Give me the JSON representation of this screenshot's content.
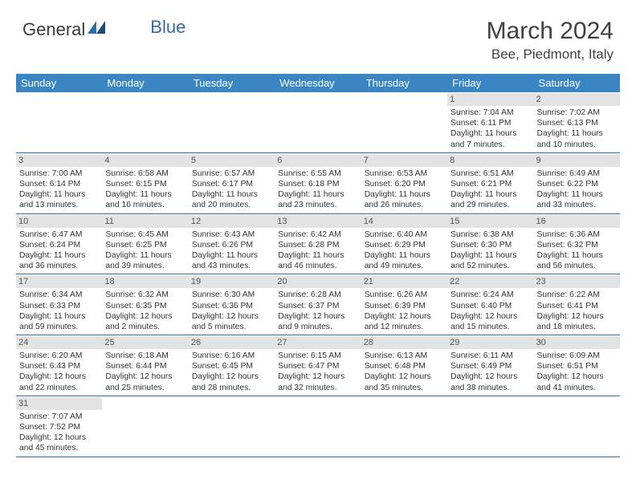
{
  "logo": {
    "word1": "General",
    "word2": "Blue"
  },
  "header": {
    "month": "March 2024",
    "location": "Bee, Piedmont, Italy"
  },
  "colors": {
    "header_bg": "#3a86c5",
    "header_text": "#ffffff",
    "date_bg": "#e3e3e3",
    "row_border": "#2f6ca8",
    "body_text": "#333333",
    "logo_gray": "#3a3a3a",
    "logo_blue": "#2f6ca8"
  },
  "daynames": [
    "Sunday",
    "Monday",
    "Tuesday",
    "Wednesday",
    "Thursday",
    "Friday",
    "Saturday"
  ],
  "weeks": [
    [
      {
        "empty": true
      },
      {
        "empty": true
      },
      {
        "empty": true
      },
      {
        "empty": true
      },
      {
        "empty": true
      },
      {
        "date": "1",
        "sunrise": "Sunrise: 7:04 AM",
        "sunset": "Sunset: 6:11 PM",
        "daylight1": "Daylight: 11 hours",
        "daylight2": "and 7 minutes."
      },
      {
        "date": "2",
        "sunrise": "Sunrise: 7:02 AM",
        "sunset": "Sunset: 6:13 PM",
        "daylight1": "Daylight: 11 hours",
        "daylight2": "and 10 minutes."
      }
    ],
    [
      {
        "date": "3",
        "sunrise": "Sunrise: 7:00 AM",
        "sunset": "Sunset: 6:14 PM",
        "daylight1": "Daylight: 11 hours",
        "daylight2": "and 13 minutes."
      },
      {
        "date": "4",
        "sunrise": "Sunrise: 6:58 AM",
        "sunset": "Sunset: 6:15 PM",
        "daylight1": "Daylight: 11 hours",
        "daylight2": "and 16 minutes."
      },
      {
        "date": "5",
        "sunrise": "Sunrise: 6:57 AM",
        "sunset": "Sunset: 6:17 PM",
        "daylight1": "Daylight: 11 hours",
        "daylight2": "and 20 minutes."
      },
      {
        "date": "6",
        "sunrise": "Sunrise: 6:55 AM",
        "sunset": "Sunset: 6:18 PM",
        "daylight1": "Daylight: 11 hours",
        "daylight2": "and 23 minutes."
      },
      {
        "date": "7",
        "sunrise": "Sunrise: 6:53 AM",
        "sunset": "Sunset: 6:20 PM",
        "daylight1": "Daylight: 11 hours",
        "daylight2": "and 26 minutes."
      },
      {
        "date": "8",
        "sunrise": "Sunrise: 6:51 AM",
        "sunset": "Sunset: 6:21 PM",
        "daylight1": "Daylight: 11 hours",
        "daylight2": "and 29 minutes."
      },
      {
        "date": "9",
        "sunrise": "Sunrise: 6:49 AM",
        "sunset": "Sunset: 6:22 PM",
        "daylight1": "Daylight: 11 hours",
        "daylight2": "and 33 minutes."
      }
    ],
    [
      {
        "date": "10",
        "sunrise": "Sunrise: 6:47 AM",
        "sunset": "Sunset: 6:24 PM",
        "daylight1": "Daylight: 11 hours",
        "daylight2": "and 36 minutes."
      },
      {
        "date": "11",
        "sunrise": "Sunrise: 6:45 AM",
        "sunset": "Sunset: 6:25 PM",
        "daylight1": "Daylight: 11 hours",
        "daylight2": "and 39 minutes."
      },
      {
        "date": "12",
        "sunrise": "Sunrise: 6:43 AM",
        "sunset": "Sunset: 6:26 PM",
        "daylight1": "Daylight: 11 hours",
        "daylight2": "and 43 minutes."
      },
      {
        "date": "13",
        "sunrise": "Sunrise: 6:42 AM",
        "sunset": "Sunset: 6:28 PM",
        "daylight1": "Daylight: 11 hours",
        "daylight2": "and 46 minutes."
      },
      {
        "date": "14",
        "sunrise": "Sunrise: 6:40 AM",
        "sunset": "Sunset: 6:29 PM",
        "daylight1": "Daylight: 11 hours",
        "daylight2": "and 49 minutes."
      },
      {
        "date": "15",
        "sunrise": "Sunrise: 6:38 AM",
        "sunset": "Sunset: 6:30 PM",
        "daylight1": "Daylight: 11 hours",
        "daylight2": "and 52 minutes."
      },
      {
        "date": "16",
        "sunrise": "Sunrise: 6:36 AM",
        "sunset": "Sunset: 6:32 PM",
        "daylight1": "Daylight: 11 hours",
        "daylight2": "and 56 minutes."
      }
    ],
    [
      {
        "date": "17",
        "sunrise": "Sunrise: 6:34 AM",
        "sunset": "Sunset: 6:33 PM",
        "daylight1": "Daylight: 11 hours",
        "daylight2": "and 59 minutes."
      },
      {
        "date": "18",
        "sunrise": "Sunrise: 6:32 AM",
        "sunset": "Sunset: 6:35 PM",
        "daylight1": "Daylight: 12 hours",
        "daylight2": "and 2 minutes."
      },
      {
        "date": "19",
        "sunrise": "Sunrise: 6:30 AM",
        "sunset": "Sunset: 6:36 PM",
        "daylight1": "Daylight: 12 hours",
        "daylight2": "and 5 minutes."
      },
      {
        "date": "20",
        "sunrise": "Sunrise: 6:28 AM",
        "sunset": "Sunset: 6:37 PM",
        "daylight1": "Daylight: 12 hours",
        "daylight2": "and 9 minutes."
      },
      {
        "date": "21",
        "sunrise": "Sunrise: 6:26 AM",
        "sunset": "Sunset: 6:39 PM",
        "daylight1": "Daylight: 12 hours",
        "daylight2": "and 12 minutes."
      },
      {
        "date": "22",
        "sunrise": "Sunrise: 6:24 AM",
        "sunset": "Sunset: 6:40 PM",
        "daylight1": "Daylight: 12 hours",
        "daylight2": "and 15 minutes."
      },
      {
        "date": "23",
        "sunrise": "Sunrise: 6:22 AM",
        "sunset": "Sunset: 6:41 PM",
        "daylight1": "Daylight: 12 hours",
        "daylight2": "and 18 minutes."
      }
    ],
    [
      {
        "date": "24",
        "sunrise": "Sunrise: 6:20 AM",
        "sunset": "Sunset: 6:43 PM",
        "daylight1": "Daylight: 12 hours",
        "daylight2": "and 22 minutes."
      },
      {
        "date": "25",
        "sunrise": "Sunrise: 6:18 AM",
        "sunset": "Sunset: 6:44 PM",
        "daylight1": "Daylight: 12 hours",
        "daylight2": "and 25 minutes."
      },
      {
        "date": "26",
        "sunrise": "Sunrise: 6:16 AM",
        "sunset": "Sunset: 6:45 PM",
        "daylight1": "Daylight: 12 hours",
        "daylight2": "and 28 minutes."
      },
      {
        "date": "27",
        "sunrise": "Sunrise: 6:15 AM",
        "sunset": "Sunset: 6:47 PM",
        "daylight1": "Daylight: 12 hours",
        "daylight2": "and 32 minutes."
      },
      {
        "date": "28",
        "sunrise": "Sunrise: 6:13 AM",
        "sunset": "Sunset: 6:48 PM",
        "daylight1": "Daylight: 12 hours",
        "daylight2": "and 35 minutes."
      },
      {
        "date": "29",
        "sunrise": "Sunrise: 6:11 AM",
        "sunset": "Sunset: 6:49 PM",
        "daylight1": "Daylight: 12 hours",
        "daylight2": "and 38 minutes."
      },
      {
        "date": "30",
        "sunrise": "Sunrise: 6:09 AM",
        "sunset": "Sunset: 6:51 PM",
        "daylight1": "Daylight: 12 hours",
        "daylight2": "and 41 minutes."
      }
    ],
    [
      {
        "date": "31",
        "sunrise": "Sunrise: 7:07 AM",
        "sunset": "Sunset: 7:52 PM",
        "daylight1": "Daylight: 12 hours",
        "daylight2": "and 45 minutes."
      },
      {
        "empty": true
      },
      {
        "empty": true
      },
      {
        "empty": true
      },
      {
        "empty": true
      },
      {
        "empty": true
      },
      {
        "empty": true
      }
    ]
  ]
}
